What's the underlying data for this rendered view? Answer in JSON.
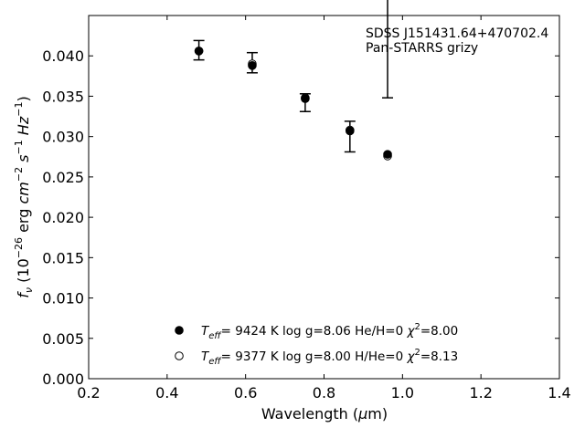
{
  "chart_data": {
    "type": "scatter",
    "title": "",
    "xlabel": "Wavelength (μm)",
    "ylabel": "f_ν (10^-26 erg cm^-2 s^-1 Hz^-1)",
    "xlim": [
      0.2,
      1.4
    ],
    "ylim": [
      0.0,
      0.045
    ],
    "x_ticks": [
      "0.2",
      "0.4",
      "0.6",
      "0.8",
      "1.0",
      "1.2",
      "1.4"
    ],
    "y_ticks": [
      "0.000",
      "0.005",
      "0.010",
      "0.015",
      "0.020",
      "0.025",
      "0.030",
      "0.035",
      "0.040"
    ],
    "x_tick_values": [
      0.2,
      0.4,
      0.6,
      0.8,
      1.0,
      1.2,
      1.4
    ],
    "y_tick_values": [
      0.0,
      0.005,
      0.01,
      0.015,
      0.02,
      0.025,
      0.03,
      0.035,
      0.04
    ],
    "annotation_lines": [
      "SDSS J151431.64+470702.4",
      "Pan-STARRS grizy"
    ],
    "observed": {
      "x": [
        0.481,
        0.617,
        0.752,
        0.866,
        0.962
      ],
      "y": [
        0.0406,
        0.0391,
        0.0342,
        0.03,
        0.0447
      ],
      "yerr_low": [
        0.0011,
        0.0012,
        0.0011,
        0.0019,
        0.0099
      ],
      "yerr_high": [
        0.0013,
        0.0013,
        0.0011,
        0.0019,
        0.0099
      ]
    },
    "series": [
      {
        "label": "Teff= 9424 K log g=8.06 He/H=0 χ2=8.00",
        "marker": "filled-circle",
        "x": [
          0.481,
          0.617,
          0.752,
          0.866,
          0.962
        ],
        "y": [
          0.0406,
          0.0388,
          0.0347,
          0.0307,
          0.0278
        ]
      },
      {
        "label": "Teff= 9377 K log g=8.00 H/He=0 χ2=8.13",
        "marker": "open-circle",
        "x": [
          0.481,
          0.617,
          0.752,
          0.866,
          0.962
        ],
        "y": [
          0.0406,
          0.039,
          0.0348,
          0.0308,
          0.0276
        ]
      }
    ],
    "legend": [
      {
        "marker": "filled-circle",
        "teff": "9424 K",
        "logg": "log g=8.06",
        "comp": "He/H=0",
        "chi2": "=8.00"
      },
      {
        "marker": "open-circle",
        "teff": "9377 K",
        "logg": "log g=8.00",
        "comp": "H/He=0",
        "chi2": "=8.13"
      }
    ],
    "legend_placement": "lower-center",
    "grid": false
  }
}
